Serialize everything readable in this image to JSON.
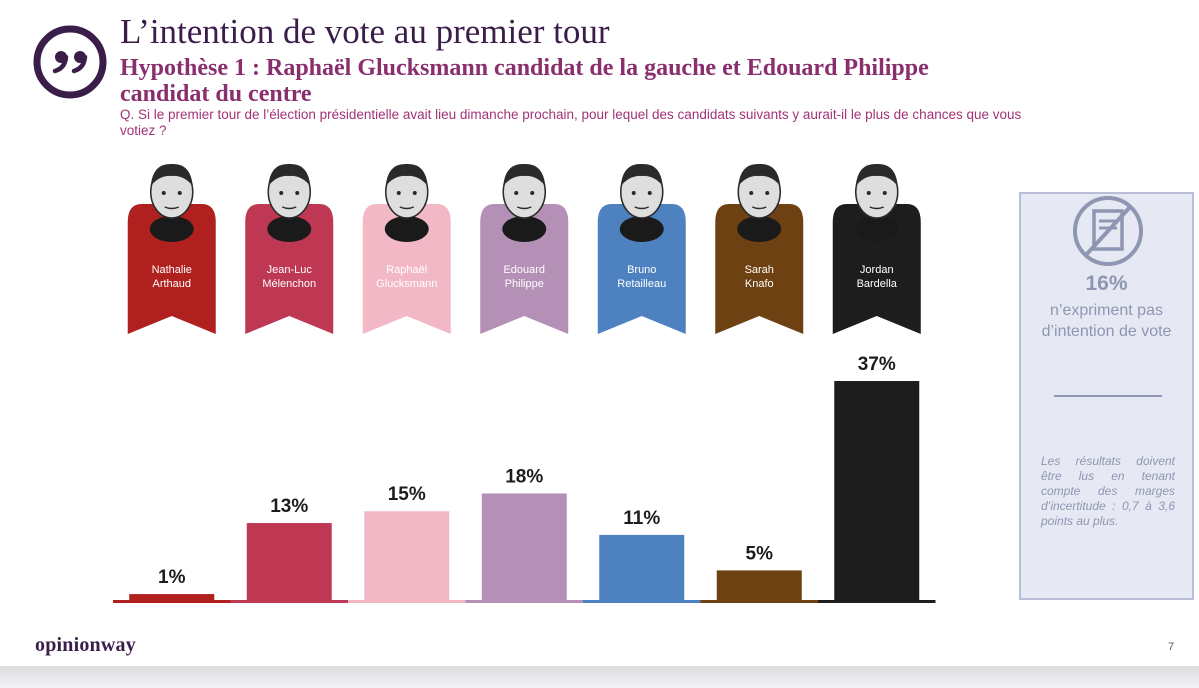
{
  "header": {
    "title": "L’intention de vote au premier tour",
    "subtitle": "Hypothèse 1 : Raphaël Glucksmann candidat de la gauche et Edouard Philippe candidat du centre",
    "question": "Q. Si le premier tour de l’élection présidentielle avait lieu dimanche prochain, pour lequel des candidats suivants y aurait-il le plus de chances que vous votiez ?"
  },
  "chart_data": {
    "type": "bar",
    "title": "L’intention de vote au premier tour",
    "categories": [
      "Nathalie Arthaud",
      "Jean-Luc Mélenchon",
      "Raphaël Glucksmann",
      "Edouard Philippe",
      "Bruno Retailleau",
      "Sarah Knafo",
      "Jordan Bardella"
    ],
    "name_lines": [
      [
        "Nathalie",
        "Arthaud"
      ],
      [
        "Jean-Luc",
        "Mélenchon"
      ],
      [
        "Raphaël",
        "Glucksmann"
      ],
      [
        "Edouard",
        "Philippe"
      ],
      [
        "Bruno",
        "Retailleau"
      ],
      [
        "Sarah",
        "Knafo"
      ],
      [
        "Jordan",
        "Bardella"
      ]
    ],
    "values": [
      1,
      13,
      15,
      18,
      11,
      5,
      37
    ],
    "value_labels": [
      "1%",
      "13%",
      "15%",
      "18%",
      "11%",
      "5%",
      "37%"
    ],
    "colors": [
      "#b0201f",
      "#be3753",
      "#f2b8c6",
      "#b48fb6",
      "#4d81c0",
      "#6e4113",
      "#1d1d1d"
    ],
    "xlabel": "",
    "ylabel": "",
    "ylim": [
      0,
      37
    ],
    "grid": false,
    "legend": "none"
  },
  "side_panel": {
    "icon": "crossed-ballot-icon",
    "percent": "16%",
    "text": "n’expriment pas d’intention de vote",
    "note": "Les résultats doivent être lus en tenant compte des marges d’incertitude : 0,7 à 3,6 points au plus."
  },
  "footer": {
    "brand": "opinionway",
    "page_number": "7"
  },
  "colors": {
    "title": "#3b1d4a",
    "accent": "#8a2f6e",
    "question": "#a23377",
    "panel_bg": "#e6e9f3",
    "panel_text": "#8f96b2"
  }
}
